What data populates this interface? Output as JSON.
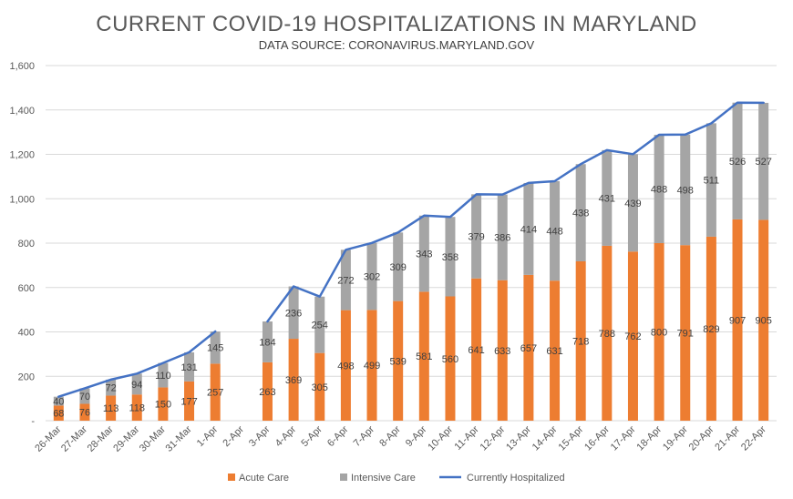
{
  "chart_data": {
    "type": "bar",
    "title": "CURRENT COVID-19 HOSPITALIZATIONS IN MARYLAND",
    "subtitle": "DATA SOURCE: CORONAVIRUS.MARYLAND.GOV",
    "stacked": true,
    "xlabel": "",
    "ylabel": "",
    "ylim": [
      0,
      1600
    ],
    "y_ticks": [
      0,
      200,
      400,
      600,
      800,
      1000,
      1200,
      1400,
      1600
    ],
    "y_tick_labels": [
      "-",
      "200",
      "400",
      "600",
      "800",
      "1,000",
      "1,200",
      "1,400",
      "1,600"
    ],
    "grid": true,
    "legend_position": "bottom",
    "categories": [
      "26-Mar",
      "27-Mar",
      "28-Mar",
      "29-Mar",
      "30-Mar",
      "31-Mar",
      "1-Apr",
      "2-Apr",
      "3-Apr",
      "4-Apr",
      "5-Apr",
      "6-Apr",
      "7-Apr",
      "8-Apr",
      "9-Apr",
      "10-Apr",
      "11-Apr",
      "12-Apr",
      "13-Apr",
      "14-Apr",
      "15-Apr",
      "16-Apr",
      "17-Apr",
      "18-Apr",
      "19-Apr",
      "20-Apr",
      "21-Apr",
      "22-Apr"
    ],
    "series": [
      {
        "name": "Acute Care",
        "kind": "bar",
        "color": "#ED7D31",
        "values": [
          68,
          76,
          113,
          118,
          150,
          177,
          257,
          null,
          263,
          369,
          305,
          498,
          499,
          539,
          581,
          560,
          641,
          633,
          657,
          631,
          718,
          788,
          762,
          800,
          791,
          829,
          907,
          905
        ]
      },
      {
        "name": "Intensive Care",
        "kind": "bar",
        "color": "#A5A5A5",
        "values": [
          40,
          70,
          72,
          94,
          110,
          131,
          145,
          null,
          184,
          236,
          254,
          272,
          302,
          309,
          343,
          358,
          379,
          386,
          414,
          448,
          438,
          431,
          439,
          488,
          498,
          511,
          526,
          527
        ]
      },
      {
        "name": "Currently Hospitalized",
        "kind": "line",
        "color": "#4472C4",
        "values": [
          108,
          146,
          185,
          212,
          260,
          308,
          402,
          null,
          447,
          605,
          559,
          770,
          801,
          848,
          924,
          918,
          1020,
          1019,
          1071,
          1079,
          1156,
          1219,
          1201,
          1288,
          1289,
          1340,
          1433,
          1432
        ]
      }
    ]
  }
}
